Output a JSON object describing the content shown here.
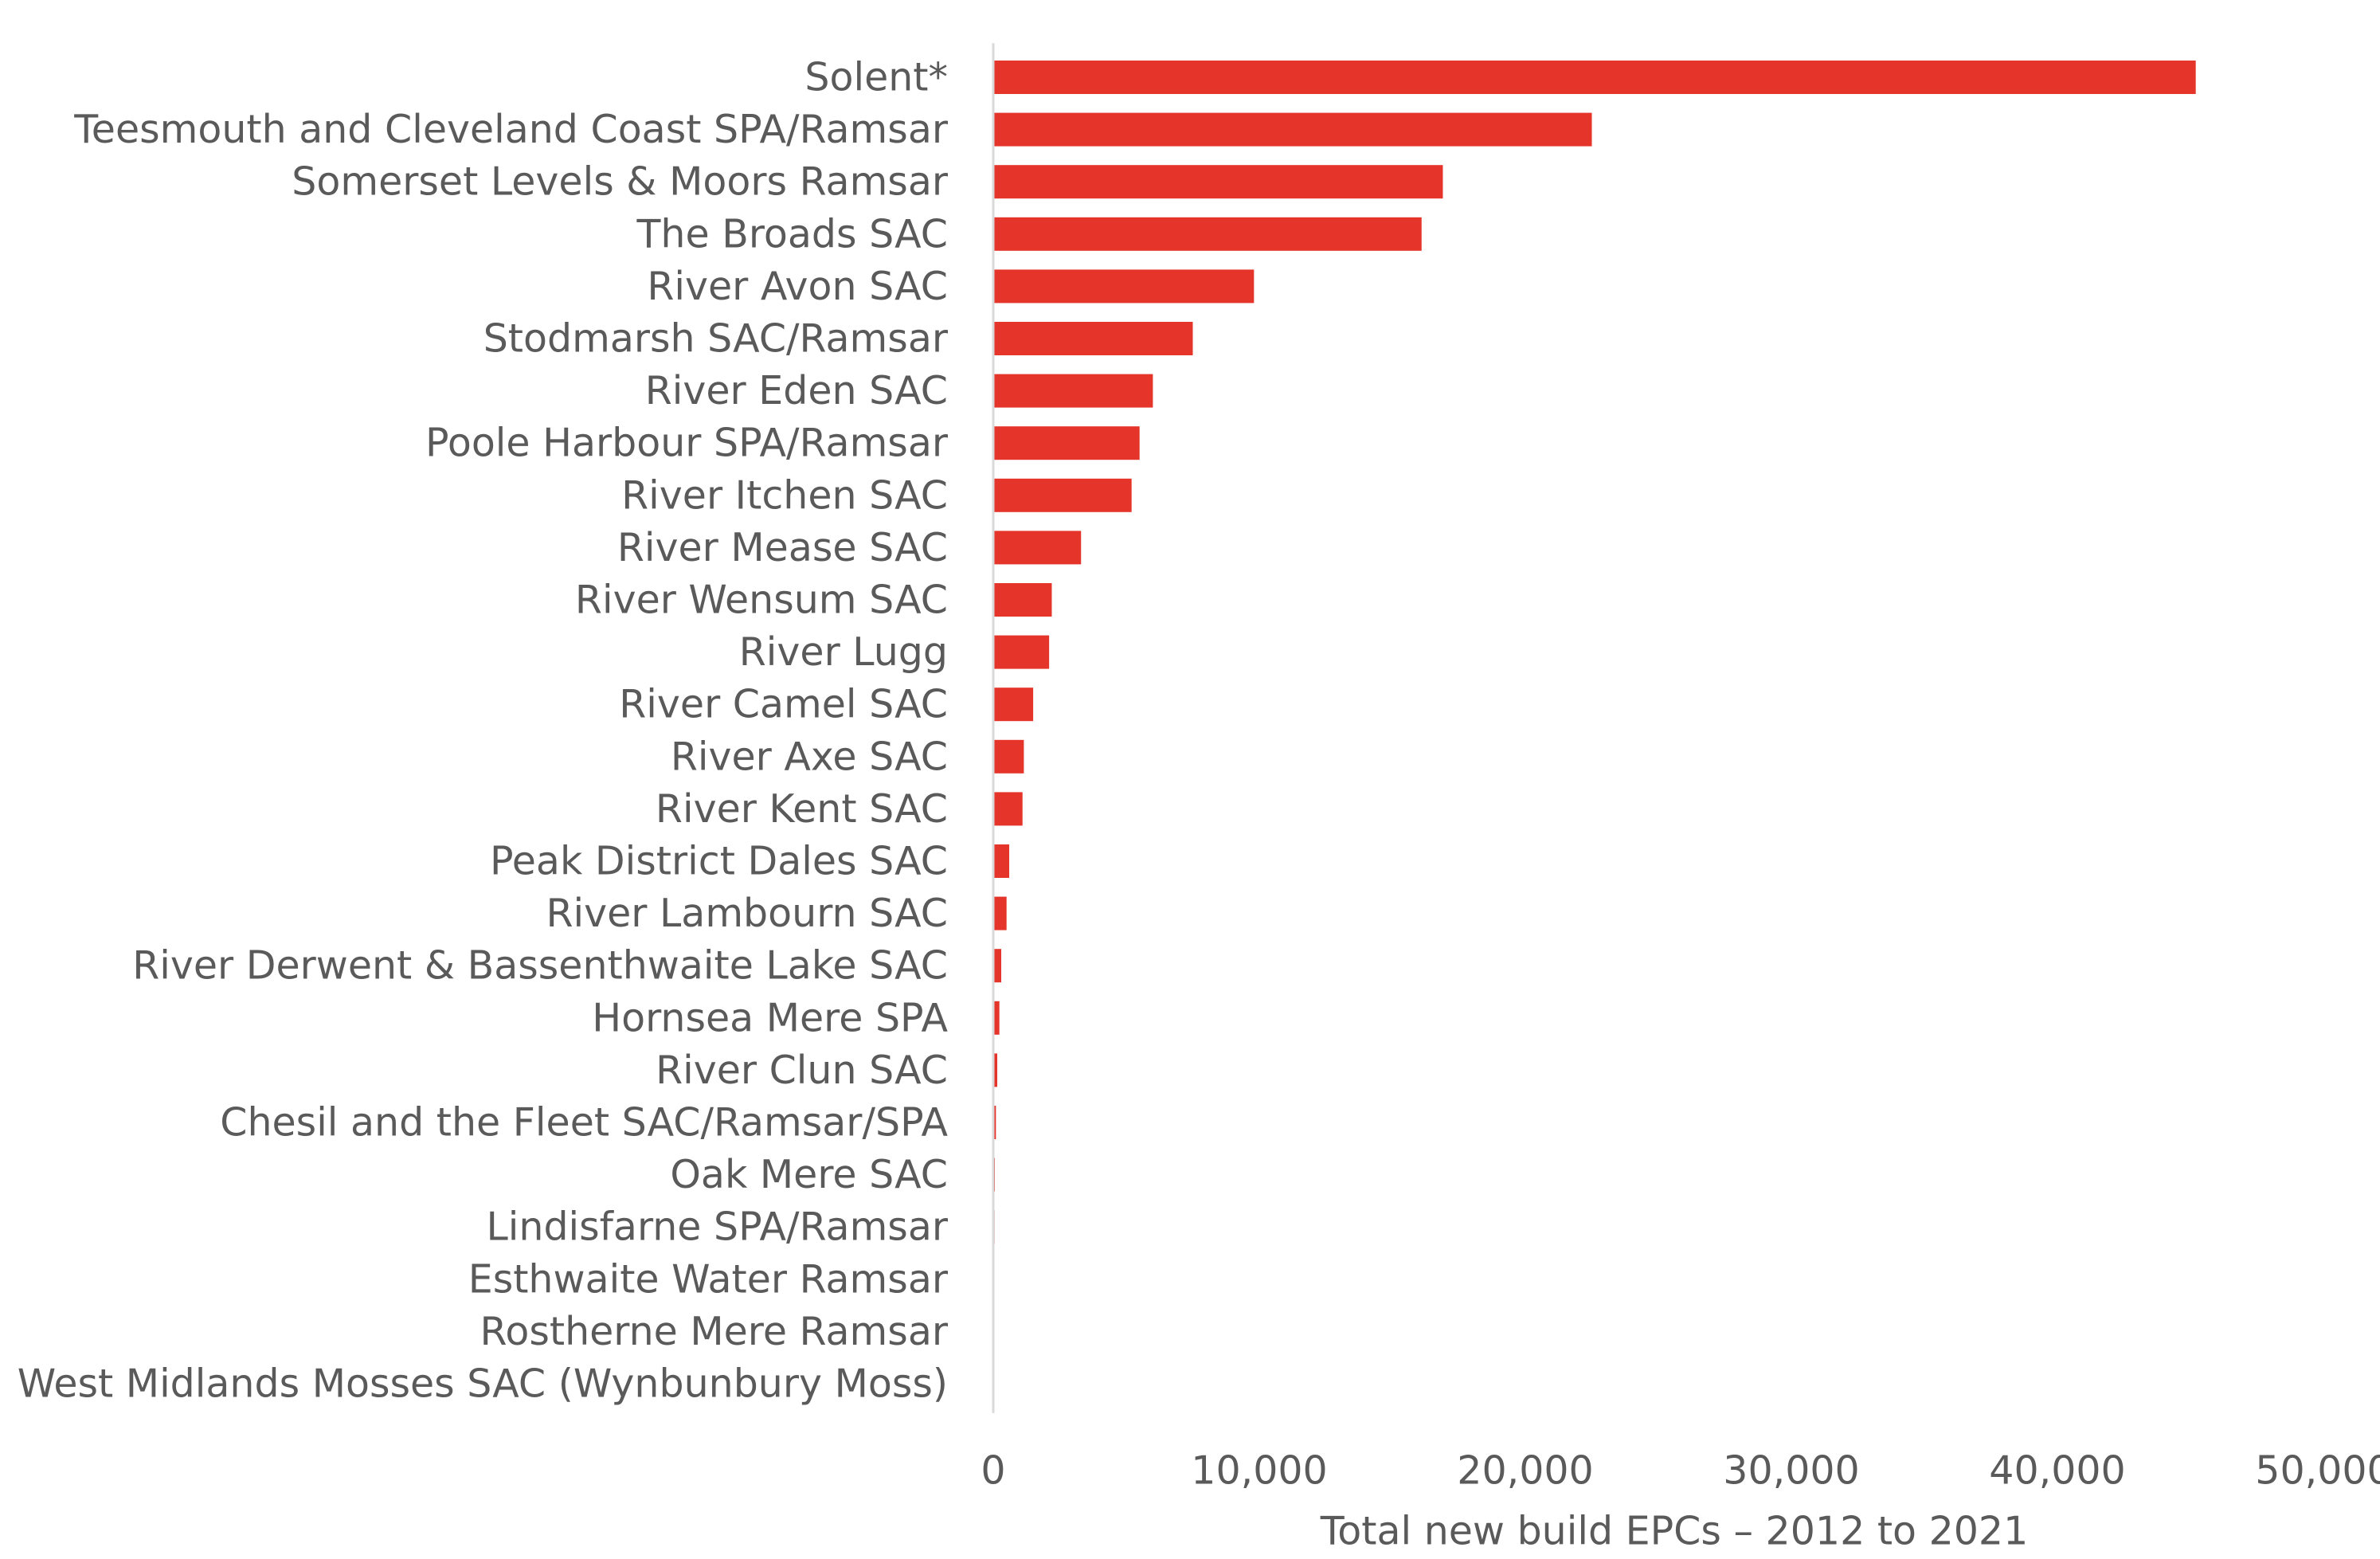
{
  "chart_data": {
    "type": "bar",
    "orientation": "horizontal",
    "title": "",
    "xlabel": "Total new build EPCs – 2012 to 2021",
    "ylabel": "",
    "xlim": [
      0,
      50000
    ],
    "xticks": [
      0,
      10000,
      20000,
      30000,
      40000,
      50000
    ],
    "xtick_labels": [
      "0",
      "10,000",
      "20,000",
      "30,000",
      "40,000",
      "50,000"
    ],
    "grid": false,
    "legend": "none",
    "bar_color": "#e5352a",
    "categories": [
      "Solent*",
      "Teesmouth and Cleveland Coast SPA/Ramsar",
      "Somerset Levels & Moors Ramsar",
      "The Broads SAC",
      "River Avon SAC",
      "Stodmarsh SAC/Ramsar",
      "River Eden SAC",
      "Poole Harbour SPA/Ramsar",
      "River Itchen SAC",
      "River Mease SAC",
      "River Wensum SAC",
      "River Lugg",
      "River Camel SAC",
      "River Axe SAC",
      "River Kent SAC",
      "Peak District Dales SAC",
      "River Lambourn SAC",
      "River Derwent & Bassenthwaite Lake SAC",
      "Hornsea Mere SPA",
      "River Clun SAC",
      "Chesil and the Fleet SAC/Ramsar/SPA",
      "Oak Mere SAC",
      "Lindisfarne SPA/Ramsar",
      "Esthwaite Water Ramsar",
      "Rostherne Mere Ramsar",
      "West Midlands Mosses SAC (Wynbunbury Moss)"
    ],
    "values": [
      45200,
      22500,
      16900,
      16100,
      9800,
      7500,
      6000,
      5500,
      5200,
      3300,
      2200,
      2100,
      1500,
      1150,
      1100,
      600,
      500,
      300,
      230,
      150,
      100,
      60,
      50,
      0,
      0,
      0
    ]
  }
}
